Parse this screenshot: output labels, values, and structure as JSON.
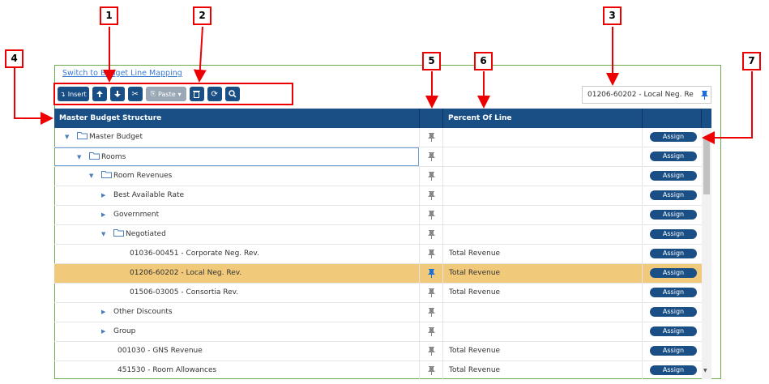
{
  "link": "Switch to Budget Line Mapping",
  "toolbar": {
    "insert": "Insert",
    "paste": "Paste"
  },
  "search": {
    "value": "01206-60202 - Local Neg. Re"
  },
  "columns": [
    "Master Budget Structure",
    "Percent Of Line"
  ],
  "assign_label": "Assign",
  "callouts": [
    "1",
    "2",
    "3",
    "4",
    "5",
    "6",
    "7"
  ],
  "tree": [
    {
      "label": "Master Budget",
      "children": [
        {
          "label": "Rooms",
          "selected": true,
          "children": [
            {
              "label": "Room Revenues",
              "children": [
                {
                  "label": "Best Available Rate",
                  "collapsed": true
                },
                {
                  "label": "Government",
                  "collapsed": true
                },
                {
                  "label": "Negotiated",
                  "children": [
                    {
                      "label": "01036-00451 - Corporate Neg. Rev.",
                      "percent": "Total Revenue"
                    },
                    {
                      "label": "01206-60202 - Local Neg. Rev.",
                      "percent": "Total Revenue",
                      "pinned": true
                    },
                    {
                      "label": "01506-03005 - Consortia Rev.",
                      "percent": "Total Revenue"
                    }
                  ]
                },
                {
                  "label": "Other Discounts",
                  "collapsed": true
                },
                {
                  "label": "Group",
                  "collapsed": true
                },
                {
                  "label": "001030 - GNS Revenue",
                  "percent": "Total Revenue"
                },
                {
                  "label": "451530 - Room Allowances",
                  "percent": "Total Revenue"
                }
              ]
            }
          ]
        }
      ]
    }
  ]
}
